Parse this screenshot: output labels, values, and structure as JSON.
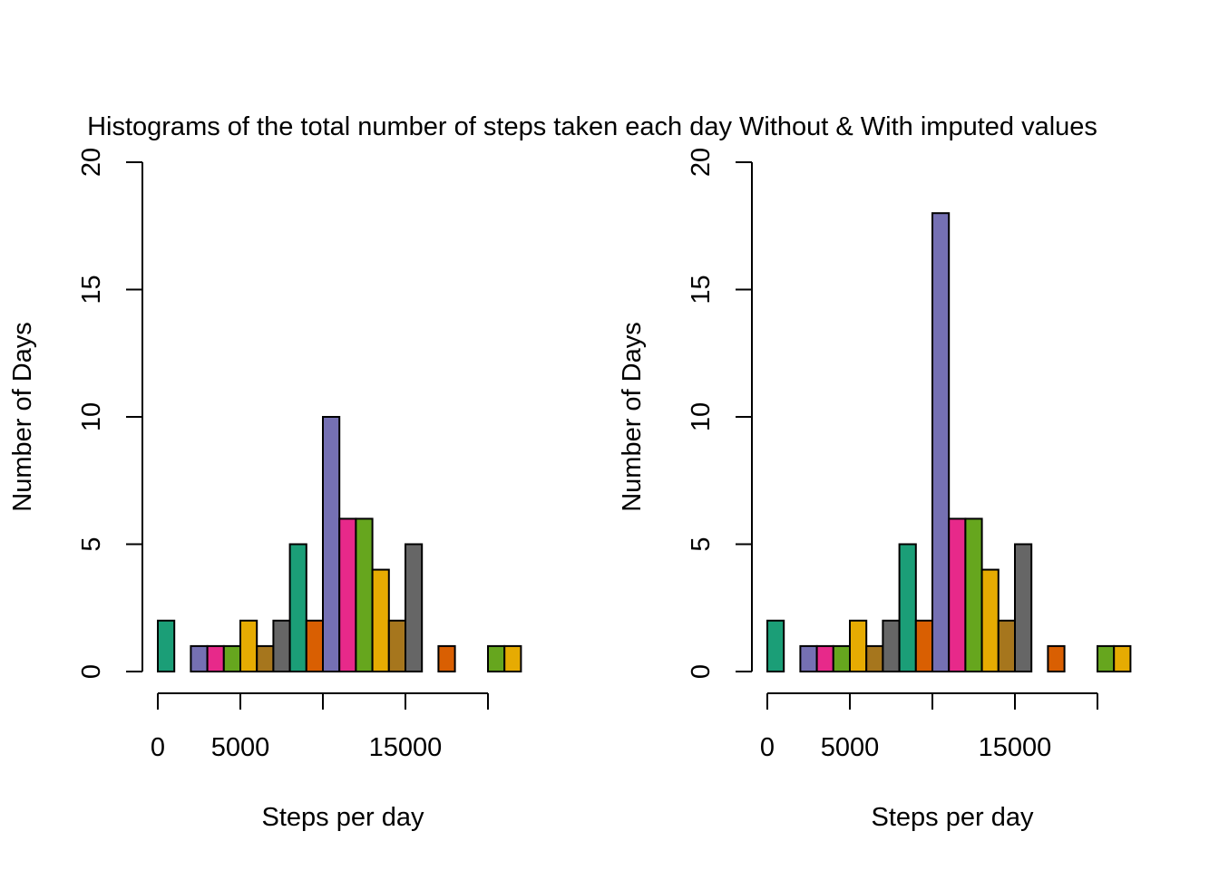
{
  "title": "Histograms of the total number of steps taken each day Without & With imputed values",
  "palette": [
    "#1b9e77",
    "#d95f02",
    "#7570b3",
    "#e7298a",
    "#66a61e",
    "#e6ab02",
    "#a6761d",
    "#666666"
  ],
  "chart_data": [
    {
      "type": "bar",
      "subtype": "histogram",
      "xlabel": "Steps per day",
      "ylabel": "Number of Days",
      "xlim": [
        0,
        20000
      ],
      "ylim": [
        0,
        20
      ],
      "x_ticks": [
        0,
        5000,
        10000,
        15000,
        20000
      ],
      "x_tick_labels": [
        "0",
        "5000",
        "",
        "15000",
        ""
      ],
      "y_ticks": [
        0,
        5,
        10,
        15,
        20
      ],
      "y_tick_labels": [
        "0",
        "5",
        "10",
        "15",
        "20"
      ],
      "grid": false,
      "bin_width": 1000,
      "bin_starts": [
        0,
        1000,
        2000,
        3000,
        4000,
        5000,
        6000,
        7000,
        8000,
        9000,
        10000,
        11000,
        12000,
        13000,
        14000,
        15000,
        16000,
        17000,
        18000,
        19000,
        20000,
        21000
      ],
      "values": [
        2,
        0,
        1,
        1,
        1,
        2,
        1,
        2,
        5,
        2,
        10,
        6,
        6,
        4,
        2,
        5,
        0,
        1,
        0,
        0,
        1,
        1
      ]
    },
    {
      "type": "bar",
      "subtype": "histogram",
      "xlabel": "Steps per day",
      "ylabel": "Number of Days",
      "xlim": [
        0,
        20000
      ],
      "ylim": [
        0,
        20
      ],
      "x_ticks": [
        0,
        5000,
        10000,
        15000,
        20000
      ],
      "x_tick_labels": [
        "0",
        "5000",
        "",
        "15000",
        ""
      ],
      "y_ticks": [
        0,
        5,
        10,
        15,
        20
      ],
      "y_tick_labels": [
        "0",
        "5",
        "10",
        "15",
        "20"
      ],
      "grid": false,
      "bin_width": 1000,
      "bin_starts": [
        0,
        1000,
        2000,
        3000,
        4000,
        5000,
        6000,
        7000,
        8000,
        9000,
        10000,
        11000,
        12000,
        13000,
        14000,
        15000,
        16000,
        17000,
        18000,
        19000,
        20000,
        21000
      ],
      "values": [
        2,
        0,
        1,
        1,
        1,
        2,
        1,
        2,
        5,
        2,
        18,
        6,
        6,
        4,
        2,
        5,
        0,
        1,
        0,
        0,
        1,
        1
      ]
    }
  ]
}
